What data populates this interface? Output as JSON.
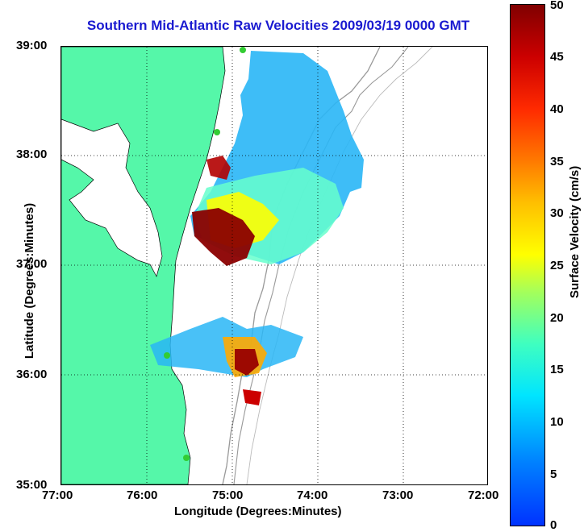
{
  "title": "Southern Mid-Atlantic Raw Velocities 2009/03/19 0000 GMT",
  "axes": {
    "xlabel": "Longitude (Degrees:Minutes)",
    "ylabel": "Latitude (Degrees:Minutes)",
    "xticks": [
      "77:00",
      "76:00",
      "75:00",
      "74:00",
      "73:00",
      "72:00"
    ],
    "yticks": [
      "39:00",
      "38:00",
      "37:00",
      "36:00",
      "35:00"
    ]
  },
  "colorbar": {
    "label": "Surface Velocity (cm/s)",
    "ticks": [
      "50",
      "45",
      "40",
      "35",
      "30",
      "25",
      "20",
      "15",
      "10",
      "5",
      "0"
    ],
    "range": [
      0,
      50
    ]
  },
  "colors": {
    "land": "#55f7a9",
    "title": "#1a1ad0",
    "high": "#8b0000",
    "mid": "#ffff00",
    "low": "#0080ff"
  }
}
